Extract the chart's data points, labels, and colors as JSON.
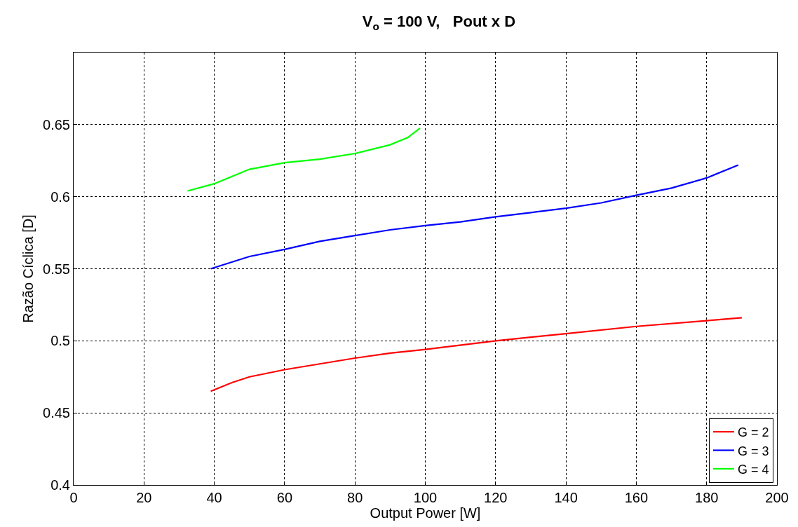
{
  "chart_data": {
    "type": "line",
    "title": "V$_{o}$ = 100 V,   Pout x D",
    "xlabel": "Output Power [W]",
    "ylabel": "Razão Cíclica [D]",
    "xlim": [
      0,
      200
    ],
    "xticks": [
      0,
      20,
      40,
      60,
      80,
      100,
      120,
      140,
      160,
      180,
      200
    ],
    "ylim": [
      0.4,
      0.7
    ],
    "yticks": [
      0.4,
      0.45,
      0.5,
      0.55,
      0.6,
      0.65
    ],
    "grid": true,
    "legend": "bottom right",
    "line_style": "solid",
    "series": [
      {
        "name": "G = 2",
        "color": "#ff0000",
        "x": [
          39,
          45,
          50,
          60,
          70,
          80,
          90,
          100,
          120,
          140,
          160,
          180,
          190
        ],
        "values": [
          0.465,
          0.471,
          0.475,
          0.48,
          0.484,
          0.488,
          0.4915,
          0.494,
          0.5,
          0.505,
          0.51,
          0.514,
          0.516
        ]
      },
      {
        "name": "G = 3",
        "color": "#0000ff",
        "x": [
          39,
          50,
          60,
          70,
          80,
          90,
          100,
          110,
          120,
          130,
          140,
          150,
          160,
          170,
          180,
          189
        ],
        "values": [
          0.55,
          0.5585,
          0.5634,
          0.569,
          0.573,
          0.577,
          0.58,
          0.5825,
          0.586,
          0.589,
          0.592,
          0.5957,
          0.601,
          0.606,
          0.613,
          0.622
        ]
      },
      {
        "name": "G = 4",
        "color": "#00ff00",
        "x": [
          32.4,
          40,
          50,
          60,
          70,
          80,
          90,
          95,
          98.5
        ],
        "values": [
          0.604,
          0.609,
          0.619,
          0.6236,
          0.626,
          0.63,
          0.636,
          0.641,
          0.6475
        ]
      }
    ]
  }
}
